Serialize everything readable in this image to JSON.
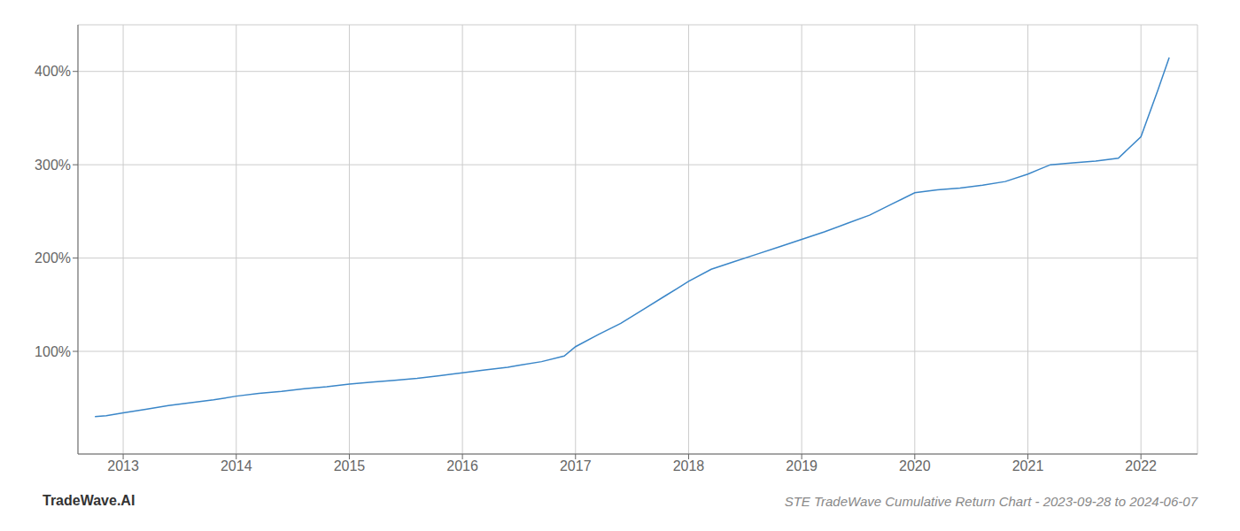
{
  "chart_data": {
    "type": "line",
    "title": "STE TradeWave Cumulative Return Chart - 2023-09-28 to 2024-06-07",
    "annotations": [
      "TradeWave.AI"
    ],
    "color": "#3a86c8",
    "grid": true,
    "xlim": [
      2012.6,
      2022.5
    ],
    "xticks": [
      2013,
      2014,
      2015,
      2016,
      2017,
      2018,
      2019,
      2020,
      2021,
      2022
    ],
    "ylim": [
      -10,
      450
    ],
    "yticks": [
      {
        "value": 100,
        "label": "100%"
      },
      {
        "value": 200,
        "label": "200%"
      },
      {
        "value": 300,
        "label": "300%"
      },
      {
        "value": 400,
        "label": "400%"
      }
    ],
    "x": [
      2012.75,
      2012.85,
      2013.0,
      2013.2,
      2013.4,
      2013.6,
      2013.8,
      2014.0,
      2014.2,
      2014.4,
      2014.6,
      2014.8,
      2015.0,
      2015.2,
      2015.4,
      2015.6,
      2015.8,
      2016.0,
      2016.2,
      2016.4,
      2016.5,
      2016.7,
      2016.9,
      2017.0,
      2017.2,
      2017.4,
      2017.6,
      2017.8,
      2018.0,
      2018.2,
      2018.4,
      2018.6,
      2018.8,
      2019.0,
      2019.2,
      2019.4,
      2019.6,
      2019.8,
      2020.0,
      2020.2,
      2020.4,
      2020.6,
      2020.8,
      2021.0,
      2021.1,
      2021.2,
      2021.4,
      2021.6,
      2021.8,
      2022.0,
      2022.15,
      2022.25
    ],
    "values": [
      30,
      31,
      34,
      38,
      42,
      45,
      48,
      52,
      55,
      57,
      60,
      62,
      65,
      67,
      69,
      71,
      74,
      77,
      80,
      83,
      85,
      89,
      95,
      105,
      118,
      130,
      145,
      160,
      175,
      188,
      196,
      204,
      212,
      220,
      228,
      237,
      246,
      258,
      270,
      273,
      275,
      278,
      282,
      290,
      295,
      300,
      302,
      304,
      307,
      330,
      380,
      415
    ]
  }
}
